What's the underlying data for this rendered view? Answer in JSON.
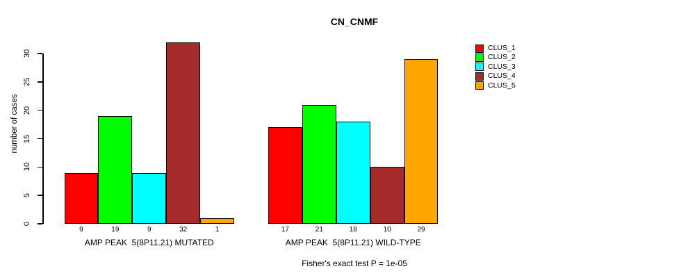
{
  "chart_data": {
    "type": "bar",
    "title": "CN_CNMF",
    "ylabel": "number of cases",
    "ylim": [
      0,
      30
    ],
    "yticks": [
      0,
      5,
      10,
      15,
      20,
      25,
      30
    ],
    "grid": false,
    "legend_position": "right",
    "series": [
      {
        "name": "CLUS_1",
        "color": "#ff0000"
      },
      {
        "name": "CLUS_2",
        "color": "#00ff00"
      },
      {
        "name": "CLUS_3",
        "color": "#00ffff"
      },
      {
        "name": "CLUS_4",
        "color": "#a52a2a"
      },
      {
        "name": "CLUS_5",
        "color": "#ffa500"
      }
    ],
    "groups": [
      {
        "label": "AMP PEAK  5(8P11.21) MUTATED",
        "values": [
          9,
          19,
          9,
          32,
          1
        ]
      },
      {
        "label": "AMP PEAK  5(8P11.21) WILD-TYPE",
        "values": [
          17,
          21,
          18,
          10,
          29
        ]
      }
    ],
    "annotation": "Fisher's exact test P = 1e-05"
  }
}
